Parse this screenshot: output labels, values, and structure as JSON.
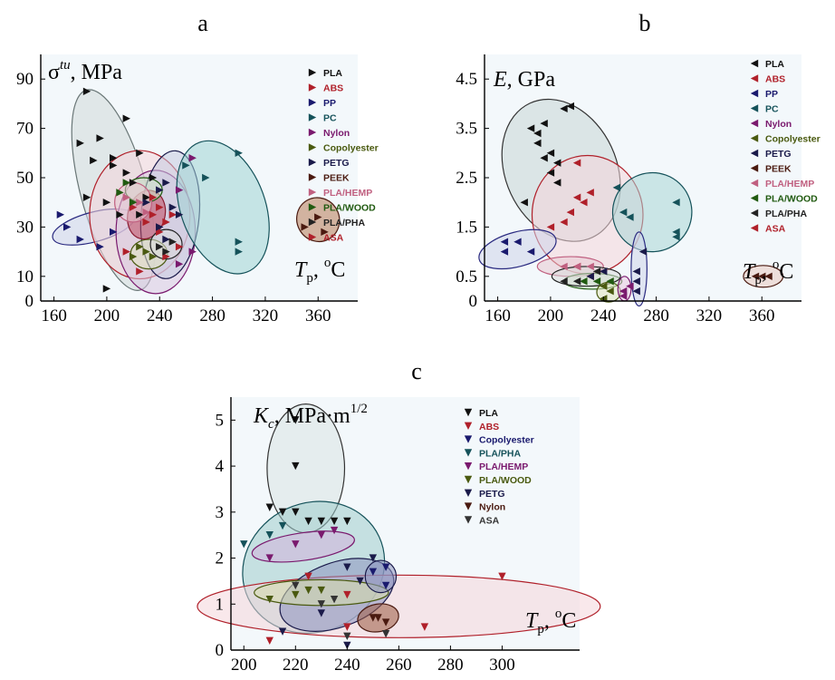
{
  "panel_letters": [
    "a",
    "b",
    "c"
  ],
  "chart_data": [
    {
      "type": "scatter",
      "panel": "a",
      "marker": "triangle-right",
      "title": "",
      "ylabel": "σtu, MPa",
      "ylabel_parts": {
        "symbol": "σ",
        "sup": "tu",
        "unit": ", MPa"
      },
      "xlabel_parts": {
        "symbol": "T",
        "sub": "p",
        "unit": ", ",
        "deg": "o",
        "unitTail": "C"
      },
      "xlim": [
        150,
        390
      ],
      "ylim": [
        0,
        100
      ],
      "xticks": [
        160,
        200,
        240,
        280,
        320,
        360
      ],
      "yticks": [
        0,
        10,
        30,
        50,
        70,
        90
      ],
      "series": [
        {
          "name": "PLA",
          "color": "#111111",
          "points": [
            [
              185,
              85
            ],
            [
              190,
              57
            ],
            [
              195,
              66
            ],
            [
              205,
              55
            ],
            [
              210,
              35
            ],
            [
              215,
              74
            ],
            [
              220,
              48
            ],
            [
              225,
              60
            ],
            [
              230,
              42
            ],
            [
              200,
              40
            ],
            [
              185,
              42
            ],
            [
              180,
              64
            ],
            [
              205,
              58
            ],
            [
              215,
              52
            ],
            [
              225,
              35
            ],
            [
              200,
              5
            ],
            [
              235,
              50
            ]
          ]
        },
        {
          "name": "ABS",
          "color": "#b0202a",
          "points": [
            [
              220,
              38
            ],
            [
              230,
              32
            ],
            [
              235,
              42
            ],
            [
              250,
              35
            ],
            [
              255,
              22
            ],
            [
              240,
              28
            ],
            [
              225,
              12
            ],
            [
              215,
              20
            ],
            [
              245,
              18
            ]
          ]
        },
        {
          "name": "PP",
          "color": "#1a1a6e",
          "points": [
            [
              165,
              35
            ],
            [
              170,
              30
            ],
            [
              180,
              25
            ],
            [
              195,
              22
            ],
            [
              205,
              28
            ]
          ]
        },
        {
          "name": "PC",
          "color": "#15525a",
          "points": [
            [
              260,
              55
            ],
            [
              275,
              50
            ],
            [
              300,
              60
            ],
            [
              300,
              24
            ],
            [
              300,
              20
            ]
          ]
        },
        {
          "name": "Nylon",
          "color": "#7a1a6e",
          "points": [
            [
              240,
              30
            ],
            [
              255,
              45
            ],
            [
              265,
              58
            ],
            [
              265,
              20
            ],
            [
              255,
              15
            ]
          ]
        },
        {
          "name": "Copolyester",
          "color": "#4a5a10",
          "points": [
            [
              220,
              18
            ],
            [
              225,
              22
            ],
            [
              230,
              20
            ],
            [
              235,
              18
            ]
          ]
        },
        {
          "name": "PETG",
          "color": "#1a1a4a",
          "points": [
            [
              230,
              40
            ],
            [
              240,
              45
            ],
            [
              245,
              48
            ],
            [
              250,
              38
            ],
            [
              255,
              35
            ],
            [
              245,
              25
            ],
            [
              240,
              30
            ]
          ]
        },
        {
          "name": "PEEK",
          "color": "#4a1a10",
          "points": [
            [
              360,
              34
            ],
            [
              350,
              30
            ],
            [
              365,
              28
            ]
          ]
        },
        {
          "name": "PLA/HEMP",
          "color": "#c06080",
          "points": [
            [
              215,
              42
            ],
            [
              225,
              40
            ],
            [
              230,
              36
            ]
          ]
        },
        {
          "name": "PLA/WOOD",
          "color": "#205a10",
          "points": [
            [
              210,
              44
            ],
            [
              215,
              48
            ],
            [
              220,
              40
            ]
          ]
        },
        {
          "name": "PLA/PHA",
          "color": "#222222",
          "points": [
            [
              240,
              22
            ],
            [
              245,
              20
            ],
            [
              250,
              24
            ]
          ]
        },
        {
          "name": "ASA",
          "color": "#b0202a",
          "points": [
            [
              235,
              35
            ],
            [
              240,
              38
            ],
            [
              245,
              32
            ]
          ]
        }
      ]
    },
    {
      "type": "scatter",
      "panel": "b",
      "marker": "triangle-left",
      "title": "",
      "ylabel": "E, GPa",
      "ylabel_parts": {
        "symbol": "E",
        "unit": ", GPa"
      },
      "xlabel_parts": {
        "symbol": "T",
        "sub": "p",
        "unit": ", ",
        "deg": "o",
        "unitTail": "C"
      },
      "xlim": [
        150,
        390
      ],
      "ylim": [
        0,
        5
      ],
      "xticks": [
        160,
        200,
        240,
        280,
        320,
        360
      ],
      "yticks": [
        0,
        0.5,
        1.5,
        2.5,
        3.5,
        4.5
      ],
      "series": [
        {
          "name": "PLA",
          "color": "#111111",
          "points": [
            [
              185,
              3.5
            ],
            [
              190,
              3.4
            ],
            [
              195,
              3.6
            ],
            [
              200,
              3.0
            ],
            [
              205,
              2.8
            ],
            [
              210,
              3.9
            ],
            [
              215,
              3.95
            ],
            [
              190,
              3.2
            ],
            [
              195,
              2.9
            ],
            [
              200,
              2.6
            ],
            [
              205,
              2.4
            ],
            [
              180,
              2.0
            ]
          ]
        },
        {
          "name": "ABS",
          "color": "#b0202a",
          "points": [
            [
              200,
              1.5
            ],
            [
              210,
              1.6
            ],
            [
              220,
              2.8
            ],
            [
              230,
              2.2
            ],
            [
              215,
              1.8
            ],
            [
              220,
              0.7
            ],
            [
              230,
              0.5
            ]
          ]
        },
        {
          "name": "PP",
          "color": "#1a1a6e",
          "points": [
            [
              165,
              1.2
            ],
            [
              175,
              1.2
            ],
            [
              185,
              1.0
            ],
            [
              165,
              1.0
            ]
          ]
        },
        {
          "name": "PC",
          "color": "#15525a",
          "points": [
            [
              250,
              2.3
            ],
            [
              255,
              1.8
            ],
            [
              260,
              1.7
            ],
            [
              295,
              2.0
            ],
            [
              295,
              1.3
            ],
            [
              295,
              1.4
            ]
          ]
        },
        {
          "name": "Nylon",
          "color": "#7a1a6e",
          "points": [
            [
              255,
              0.2
            ],
            [
              255,
              0.1
            ],
            [
              260,
              0.3
            ]
          ]
        },
        {
          "name": "Copolyester",
          "color": "#4a5a10",
          "points": [
            [
              240,
              0.05
            ],
            [
              245,
              0.2
            ],
            [
              240,
              0.3
            ]
          ]
        },
        {
          "name": "PETG",
          "color": "#1a1a4a",
          "points": [
            [
              230,
              0.5
            ],
            [
              240,
              0.6
            ],
            [
              265,
              0.6
            ],
            [
              265,
              0.4
            ],
            [
              270,
              1.0
            ],
            [
              265,
              0.2
            ]
          ]
        },
        {
          "name": "PEEK",
          "color": "#4a1a10",
          "points": [
            [
              355,
              0.5
            ],
            [
              360,
              0.5
            ],
            [
              365,
              0.5
            ]
          ]
        },
        {
          "name": "PLA/HEMP",
          "color": "#c06080",
          "points": [
            [
              210,
              0.7
            ],
            [
              220,
              0.7
            ],
            [
              230,
              0.7
            ]
          ]
        },
        {
          "name": "PLA/WOOD",
          "color": "#205a10",
          "points": [
            [
              225,
              0.4
            ],
            [
              235,
              0.4
            ],
            [
              245,
              0.4
            ]
          ]
        },
        {
          "name": "PLA/PHA",
          "color": "#222222",
          "points": [
            [
              210,
              0.4
            ],
            [
              220,
              0.4
            ],
            [
              235,
              0.6
            ]
          ]
        },
        {
          "name": "ASA",
          "color": "#b0202a",
          "points": [
            [
              220,
              2.1
            ],
            [
              225,
              2.0
            ]
          ]
        }
      ]
    },
    {
      "type": "scatter",
      "panel": "c",
      "marker": "triangle-down",
      "title": "",
      "ylabel": "Kc, MPa·m1/2",
      "ylabel_parts": {
        "symbol": "K",
        "sub": "c",
        "unit": ", MPa·m",
        "sup": "1/2"
      },
      "xlabel_parts": {
        "symbol": "T",
        "sub": "p",
        "unit": ", ",
        "deg": "o",
        "unitTail": "C"
      },
      "xlim": [
        195,
        330
      ],
      "ylim": [
        0,
        5.5
      ],
      "xticks": [
        200,
        220,
        240,
        260,
        280,
        300
      ],
      "yticks": [
        0,
        1,
        2,
        3,
        4,
        5
      ],
      "series": [
        {
          "name": "PLA",
          "color": "#111111",
          "points": [
            [
              220,
              5.0
            ],
            [
              220,
              4.0
            ],
            [
              220,
              3.0
            ],
            [
              225,
              2.8
            ],
            [
              230,
              2.8
            ],
            [
              235,
              2.8
            ],
            [
              240,
              2.8
            ],
            [
              210,
              3.1
            ],
            [
              215,
              3.0
            ]
          ]
        },
        {
          "name": "ABS",
          "color": "#b0202a",
          "points": [
            [
              210,
              0.2
            ],
            [
              225,
              1.6
            ],
            [
              240,
              1.2
            ],
            [
              270,
              0.5
            ],
            [
              300,
              1.6
            ],
            [
              240,
              0.5
            ]
          ]
        },
        {
          "name": "Copolyester",
          "color": "#1a1a6e",
          "points": [
            [
              250,
              1.7
            ],
            [
              255,
              1.4
            ],
            [
              255,
              1.8
            ]
          ]
        },
        {
          "name": "PLA/PHA",
          "color": "#15525a",
          "points": [
            [
              200,
              2.3
            ],
            [
              210,
              2.5
            ],
            [
              215,
              2.7
            ]
          ]
        },
        {
          "name": "PLA/HEMP",
          "color": "#7a1a6e",
          "points": [
            [
              210,
              2.0
            ],
            [
              220,
              2.3
            ],
            [
              230,
              2.5
            ],
            [
              235,
              2.6
            ]
          ]
        },
        {
          "name": "PLA/WOOD",
          "color": "#4a5a10",
          "points": [
            [
              210,
              1.1
            ],
            [
              220,
              1.2
            ],
            [
              225,
              1.3
            ],
            [
              230,
              1.3
            ]
          ]
        },
        {
          "name": "PETG",
          "color": "#1a1a4a",
          "points": [
            [
              215,
              0.4
            ],
            [
              230,
              0.8
            ],
            [
              240,
              1.8
            ],
            [
              245,
              1.5
            ],
            [
              250,
              2.0
            ],
            [
              240,
              0.1
            ]
          ]
        },
        {
          "name": "Nylon",
          "color": "#4a1a10",
          "points": [
            [
              250,
              0.7
            ],
            [
              255,
              0.6
            ],
            [
              252,
              0.7
            ]
          ]
        },
        {
          "name": "ASA",
          "color": "#333333",
          "points": [
            [
              220,
              1.4
            ],
            [
              230,
              1.0
            ],
            [
              235,
              1.1
            ],
            [
              240,
              0.3
            ],
            [
              255,
              0.35
            ]
          ]
        }
      ]
    }
  ]
}
